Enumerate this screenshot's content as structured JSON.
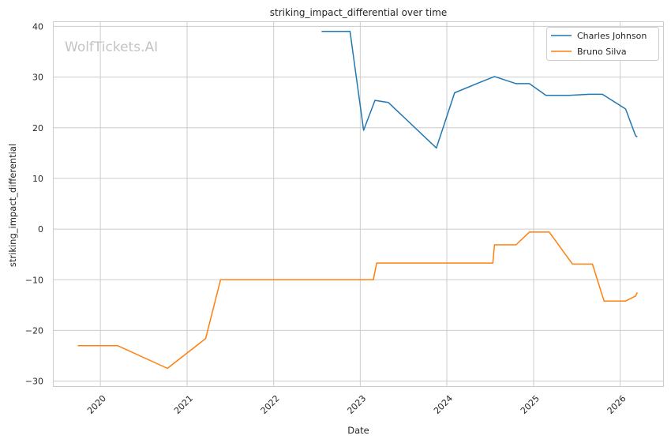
{
  "chart_data": {
    "type": "line",
    "title": "striking_impact_differential over time",
    "xlabel": "Date",
    "ylabel": "striking_impact_differential",
    "watermark": "WolfTickets.AI",
    "grid": true,
    "legend_position": "top-right",
    "x_range": [
      "2019-06-15",
      "2026-07-01"
    ],
    "ylim": [
      -31,
      41
    ],
    "x_ticks": [
      "2020",
      "2021",
      "2022",
      "2023",
      "2024",
      "2025",
      "2026"
    ],
    "y_ticks": [
      40,
      30,
      20,
      10,
      0,
      -10,
      -20,
      -30
    ],
    "y_tick_labels": [
      "40",
      "30",
      "20",
      "10",
      "0",
      "−10",
      "−20",
      "−30"
    ],
    "series": [
      {
        "name": "Charles Johnson",
        "color": "#1f77b4",
        "points": [
          [
            "2022-07-22",
            39.0
          ],
          [
            "2022-11-19",
            39.0
          ],
          [
            "2023-01-15",
            19.5
          ],
          [
            "2023-03-04",
            25.4
          ],
          [
            "2023-04-29",
            25.0
          ],
          [
            "2023-11-18",
            16.0
          ],
          [
            "2024-02-03",
            26.9
          ],
          [
            "2024-05-11",
            28.8
          ],
          [
            "2024-07-20",
            30.1
          ],
          [
            "2024-10-19",
            28.7
          ],
          [
            "2024-12-14",
            28.7
          ],
          [
            "2025-02-22",
            26.4
          ],
          [
            "2025-05-31",
            26.4
          ],
          [
            "2025-08-23",
            26.6
          ],
          [
            "2025-10-18",
            26.6
          ],
          [
            "2026-01-24",
            23.7
          ],
          [
            "2026-03-07",
            18.4
          ],
          [
            "2026-03-14",
            18.2
          ]
        ]
      },
      {
        "name": "Bruno Silva",
        "color": "#ff7f0e",
        "points": [
          [
            "2019-09-28",
            -23.0
          ],
          [
            "2020-03-14",
            -23.0
          ],
          [
            "2020-10-10",
            -27.5
          ],
          [
            "2021-03-20",
            -21.6
          ],
          [
            "2021-05-22",
            -10.0
          ],
          [
            "2022-06-18",
            -10.0
          ],
          [
            "2023-02-25",
            -10.0
          ],
          [
            "2023-03-11",
            -6.7
          ],
          [
            "2024-07-13",
            -6.7
          ],
          [
            "2024-07-20",
            -3.1
          ],
          [
            "2024-10-19",
            -3.1
          ],
          [
            "2024-12-14",
            -0.6
          ],
          [
            "2025-03-08",
            -0.6
          ],
          [
            "2025-06-14",
            -6.9
          ],
          [
            "2025-09-06",
            -6.9
          ],
          [
            "2025-10-25",
            -14.2
          ],
          [
            "2026-01-24",
            -14.2
          ],
          [
            "2026-03-07",
            -13.2
          ],
          [
            "2026-03-14",
            -12.5
          ]
        ]
      }
    ]
  }
}
